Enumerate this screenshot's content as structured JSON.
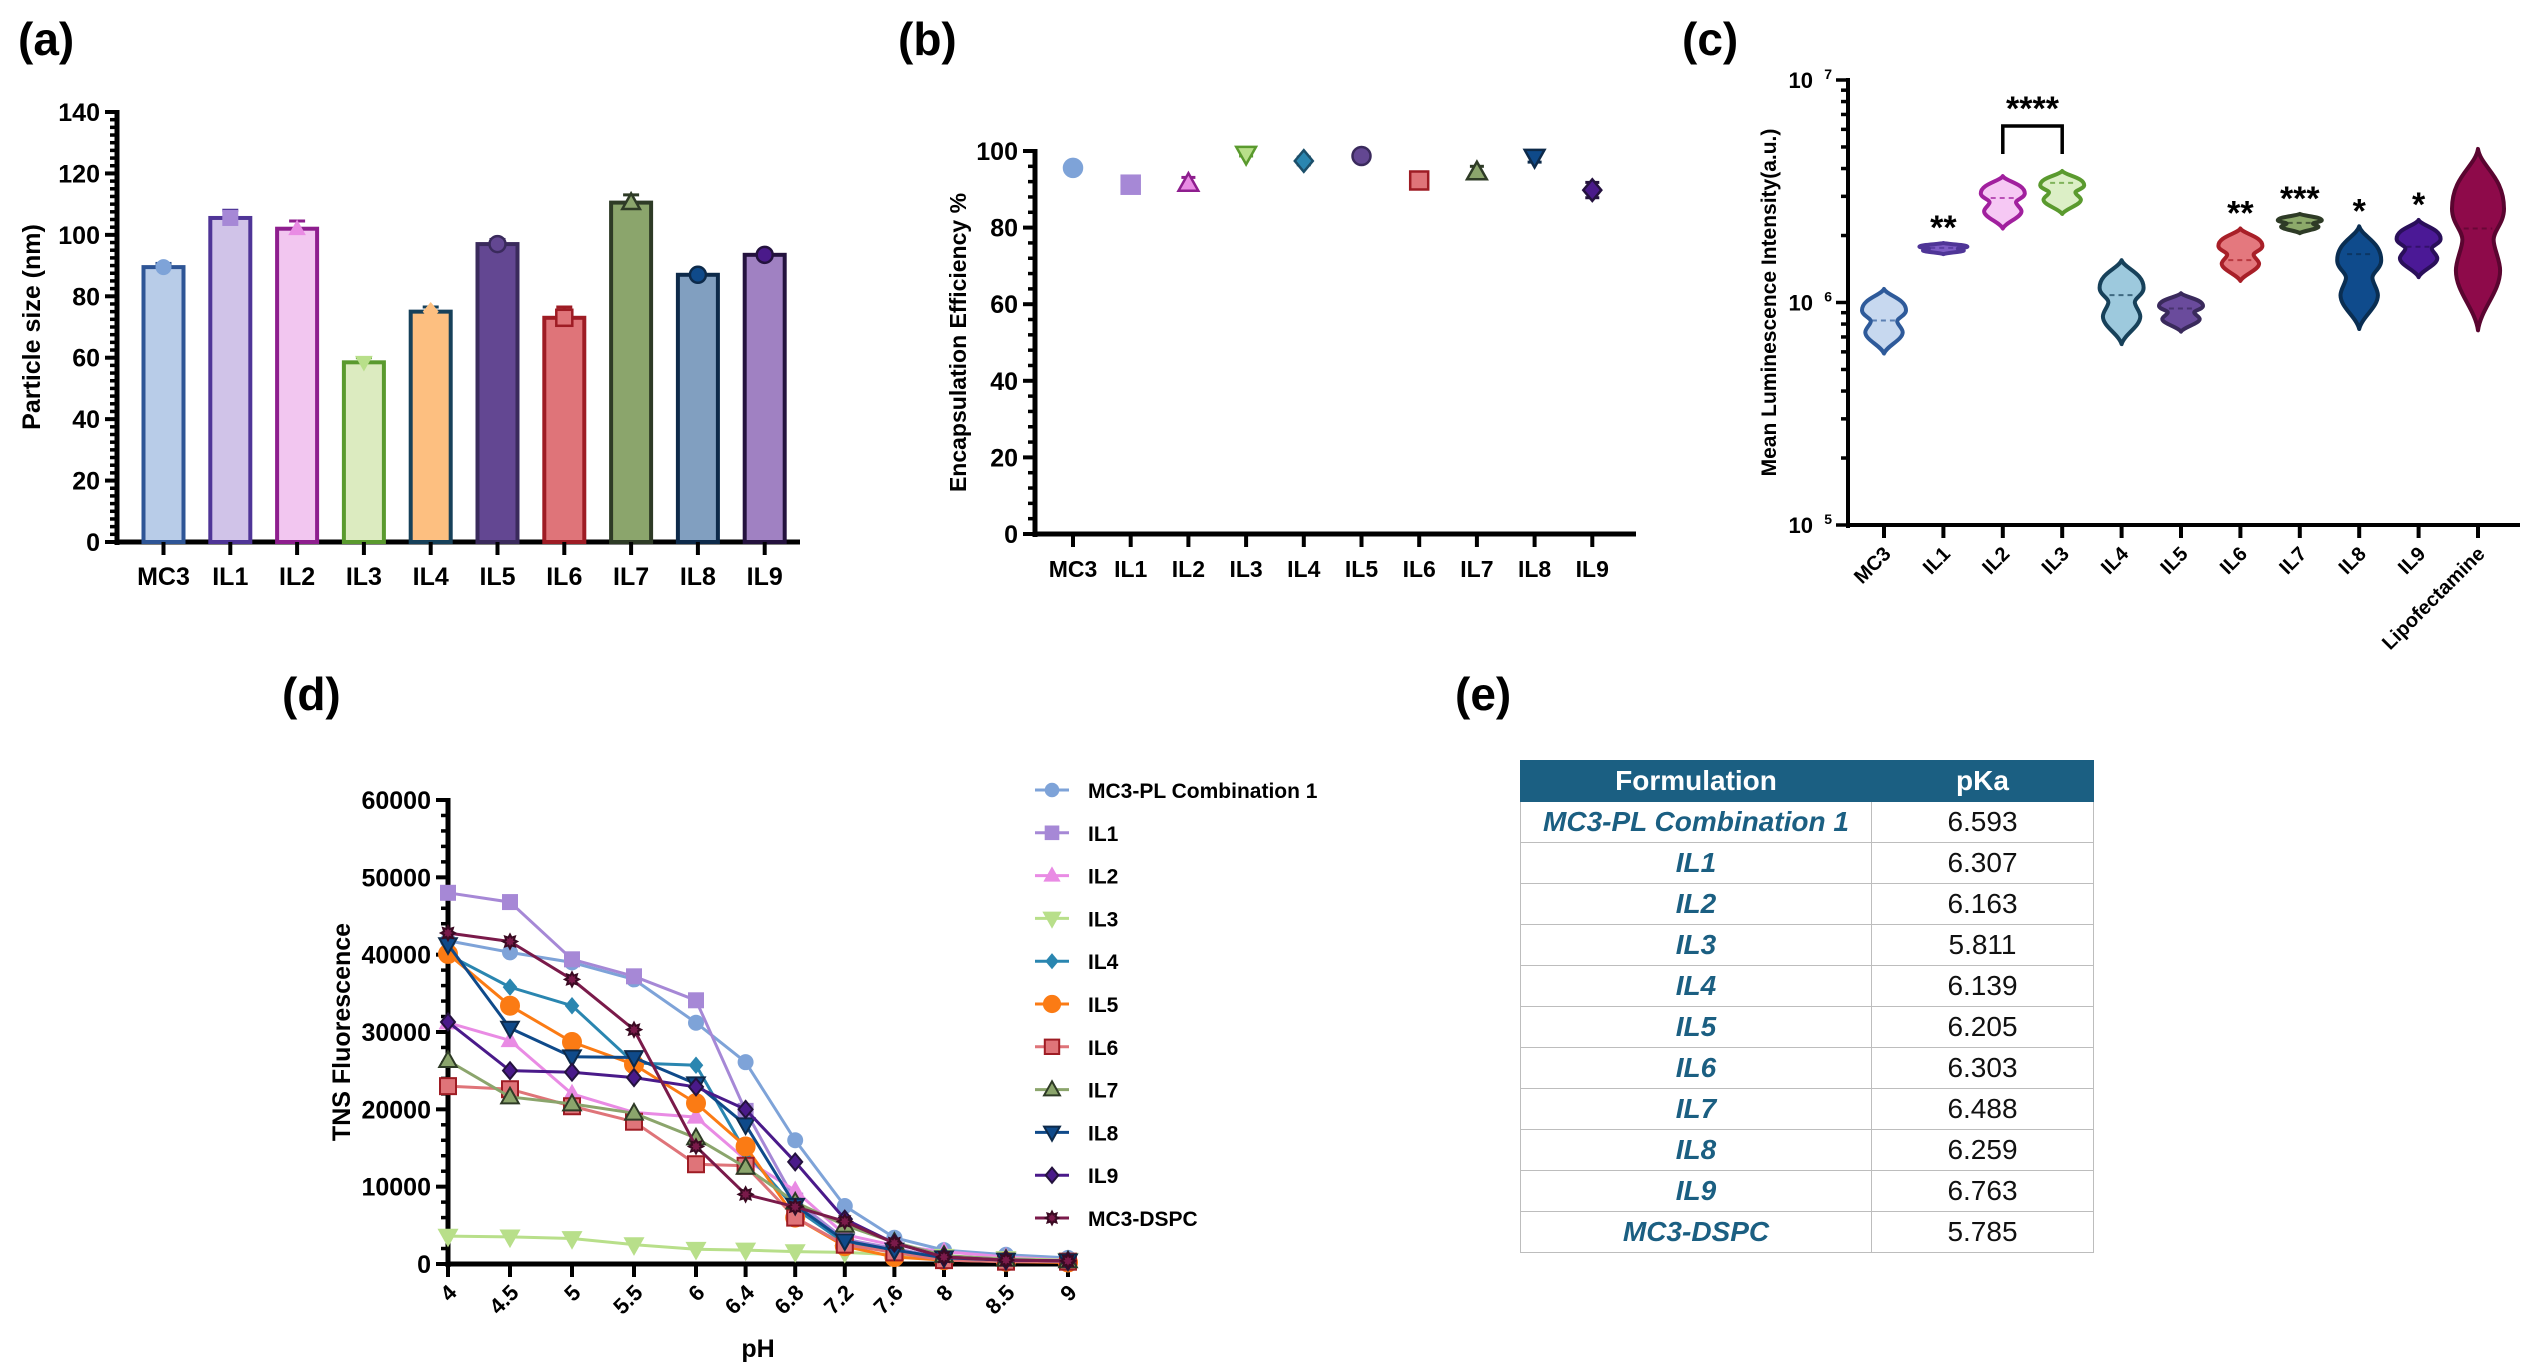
{
  "panels": {
    "a": {
      "label": "(a)"
    },
    "b": {
      "label": "(b)"
    },
    "c": {
      "label": "(c)"
    },
    "d": {
      "label": "(d)"
    },
    "e": {
      "label": "(e)"
    }
  },
  "chart_data": [
    {
      "id": "a",
      "type": "bar",
      "title": "",
      "xlabel": "",
      "ylabel": "Particle size (nm)",
      "ylim": [
        0,
        140
      ],
      "yticks": [
        0,
        20,
        40,
        60,
        80,
        100,
        120,
        140
      ],
      "categories": [
        "MC3",
        "IL1",
        "IL2",
        "IL3",
        "IL4",
        "IL5",
        "IL6",
        "IL7",
        "IL8",
        "IL9"
      ],
      "values": [
        89.5,
        105.5,
        102,
        58.5,
        75,
        97,
        73,
        110.5,
        87,
        93.5
      ],
      "errors": [
        1.2,
        2.5,
        2.5,
        1.5,
        1.5,
        1.5,
        3.5,
        2.5,
        1.0,
        1.0
      ],
      "markers": [
        "circle",
        "square",
        "triangle-up",
        "triangle-down",
        "diamond",
        "circle",
        "square",
        "triangle-up",
        "circle",
        "circle"
      ],
      "fill_colors": [
        "#b8cce8",
        "#d0c3e8",
        "#f2c6f0",
        "#dcebc0",
        "#fdbf80",
        "#634792",
        "#df7479",
        "#8ba56c",
        "#819fc0",
        "#a081c2"
      ],
      "edge_colors": [
        "#2e5596",
        "#4f3597",
        "#8e1e8e",
        "#5a9a2e",
        "#17415a",
        "#3a2a5c",
        "#9e1c24",
        "#2e3b26",
        "#0d2a4a",
        "#24123e"
      ],
      "marker_colors": [
        "#7ea3d8",
        "#a688d6",
        "#e98be4",
        "#b8df8a",
        "#fdbf80",
        "#634792",
        "#df7479",
        "#8ba56c",
        "#0f4a8a",
        "#4a1a8a"
      ]
    },
    {
      "id": "b",
      "type": "scatter",
      "title": "",
      "xlabel": "",
      "ylabel": "Encapsulation Efficiency %",
      "ylim": [
        0,
        100
      ],
      "yticks": [
        0,
        20,
        40,
        60,
        80,
        100
      ],
      "categories": [
        "MC3",
        "IL1",
        "IL2",
        "IL3",
        "IL4",
        "IL5",
        "IL6",
        "IL7",
        "IL8",
        "IL9"
      ],
      "values": [
        95.6,
        91.2,
        91.5,
        99.2,
        97.4,
        98.7,
        92.3,
        94.5,
        98.4,
        89.8
      ],
      "errors": [
        1.0,
        0.3,
        1.6,
        0.5,
        1.0,
        0.3,
        0.3,
        1.5,
        1.3,
        2.0
      ],
      "markers": [
        "circle",
        "square",
        "triangle-up",
        "triangle-down",
        "diamond",
        "circle",
        "square",
        "triangle-up",
        "triangle-down",
        "diamond"
      ],
      "fill_colors": [
        "#7ea3d8",
        "#a688d6",
        "#e98be4",
        "#b8df8a",
        "#2a86b0",
        "#634792",
        "#df7479",
        "#8ba56c",
        "#0f4a8a",
        "#4a1a8a"
      ],
      "edge_colors": [
        "#7ea3d8",
        "#a688d6",
        "#8e1e8e",
        "#5a9a2e",
        "#1b4f6a",
        "#3a2a5c",
        "#9e1c24",
        "#2e3b26",
        "#0d2a4a",
        "#24123e"
      ]
    },
    {
      "id": "c",
      "type": "violin",
      "title": "",
      "xlabel": "",
      "ylabel": "Mean Luminescence Intensity(a.u.)",
      "yscale": "log",
      "ylim": [
        100000,
        10000000
      ],
      "ytick_labels": [
        {
          "base": "10",
          "exp": "5",
          "value": 100000
        },
        {
          "base": "10",
          "exp": "6",
          "value": 1000000
        },
        {
          "base": "10",
          "exp": "7",
          "value": 10000000
        }
      ],
      "categories": [
        "MC3",
        "IL1",
        "IL2",
        "IL3",
        "IL4",
        "IL5",
        "IL6",
        "IL7",
        "IL8",
        "IL9",
        "Lipofectamine"
      ],
      "ranges": [
        [
          590000,
          1150000
        ],
        [
          1650000,
          1850000
        ],
        [
          2150000,
          3700000
        ],
        [
          2500000,
          3900000
        ],
        [
          650000,
          1550000
        ],
        [
          740000,
          1100000
        ],
        [
          1250000,
          2150000
        ],
        [
          2050000,
          2500000
        ],
        [
          760000,
          2200000
        ],
        [
          1300000,
          2350000
        ],
        [
          750000,
          4900000
        ]
      ],
      "medians": [
        830000,
        1760000,
        2950000,
        3450000,
        1080000,
        940000,
        1550000,
        2280000,
        1650000,
        1780000,
        2150000
      ],
      "significance": [
        "",
        "**",
        "",
        "",
        "",
        "",
        "**",
        "***",
        "*",
        "*",
        ""
      ],
      "bracket": {
        "from": "IL2",
        "to": "IL3",
        "label": "****"
      },
      "fill_colors": [
        "#c7d8ef",
        "#7d5cc4",
        "#f6c8f4",
        "#dcefc6",
        "#9dc9dd",
        "#6a4b9c",
        "#e4787e",
        "#8ca96a",
        "#0f4b8c",
        "#4b1996",
        "#8e0a4a"
      ],
      "edge_colors": [
        "#2e5a9a",
        "#4f3597",
        "#a1209e",
        "#5a9a2e",
        "#17415a",
        "#3a2a5c",
        "#a81f28",
        "#2e3b26",
        "#0a2e52",
        "#2a0f5a",
        "#5a0530"
      ]
    },
    {
      "id": "d",
      "type": "line",
      "title": "",
      "xlabel": "pH",
      "ylabel": "TNS Fluorescence",
      "ylim": [
        0,
        60000
      ],
      "yticks": [
        0,
        10000,
        20000,
        30000,
        40000,
        50000,
        60000
      ],
      "xlim": [
        4,
        9
      ],
      "x": [
        4,
        4.5,
        5,
        5.5,
        6,
        6.4,
        6.8,
        7.2,
        7.6,
        8,
        8.5,
        9
      ],
      "x_tick_labels": [
        "4",
        "4.5",
        "5",
        "5.5",
        "6",
        "6.4",
        "6.8",
        "7.2",
        "7.6",
        "8",
        "8.5",
        "9"
      ],
      "legend_position": "right",
      "series": [
        {
          "name": "MC3-PL Combination 1",
          "marker": "circle",
          "color": "#7ea3d8",
          "edge": "#7ea3d8",
          "values": [
            41800,
            40300,
            39000,
            36800,
            31200,
            26100,
            16000,
            7500,
            3400,
            1800,
            1200,
            800
          ]
        },
        {
          "name": "IL1",
          "marker": "square",
          "color": "#a688d6",
          "edge": "#a688d6",
          "values": [
            48000,
            46800,
            39400,
            37200,
            34100,
            19800,
            8200,
            3200,
            2000,
            800,
            600,
            400
          ]
        },
        {
          "name": "IL2",
          "marker": "triangle-up",
          "color": "#e98be4",
          "edge": "#e98be4",
          "values": [
            31200,
            28900,
            22000,
            19600,
            19000,
            13500,
            9500,
            3800,
            2400,
            1600,
            900,
            500
          ]
        },
        {
          "name": "IL3",
          "marker": "triangle-down",
          "color": "#b8df8a",
          "edge": "#b8df8a",
          "values": [
            3600,
            3500,
            3300,
            2500,
            1900,
            1800,
            1600,
            1500,
            1200,
            1000,
            700,
            500
          ]
        },
        {
          "name": "IL4",
          "marker": "diamond-small",
          "color": "#2a86b0",
          "edge": "#2a86b0",
          "values": [
            40000,
            35800,
            33400,
            26000,
            25700,
            14500,
            7200,
            2700,
            1800,
            800,
            500,
            400
          ]
        },
        {
          "name": "IL5",
          "marker": "circle-large",
          "color": "#fb7b14",
          "edge": "#fb7b14",
          "values": [
            40100,
            33400,
            28700,
            25800,
            20800,
            15200,
            6000,
            2300,
            900,
            500,
            300,
            200
          ]
        },
        {
          "name": "IL6",
          "marker": "square-open",
          "color": "#df7479",
          "edge": "#9e1c24",
          "values": [
            23000,
            22600,
            20400,
            18400,
            12900,
            12700,
            6000,
            2500,
            1500,
            500,
            300,
            300
          ]
        },
        {
          "name": "IL7",
          "marker": "triangle-up-open",
          "color": "#8ba56c",
          "edge": "#2e3b26",
          "values": [
            26300,
            21600,
            20700,
            19500,
            16300,
            12500,
            8000,
            5000,
            2800,
            1100,
            600,
            400
          ]
        },
        {
          "name": "IL8",
          "marker": "triangle-down",
          "color": "#0f4a8a",
          "edge": "#0d2a4a",
          "values": [
            41300,
            30500,
            26800,
            26700,
            23300,
            18000,
            7600,
            3000,
            1800,
            800,
            500,
            400
          ]
        },
        {
          "name": "IL9",
          "marker": "diamond",
          "color": "#4a1a8a",
          "edge": "#24123e",
          "values": [
            31300,
            25000,
            24800,
            24100,
            22900,
            20000,
            13200,
            5800,
            2700,
            900,
            500,
            400
          ]
        },
        {
          "name": "MC3-DSPC",
          "marker": "star",
          "color": "#7a1a4a",
          "edge": "#3a0a22",
          "values": [
            42800,
            41700,
            36800,
            30300,
            15200,
            9000,
            7400,
            5500,
            2700,
            900,
            500,
            400
          ]
        }
      ]
    },
    {
      "id": "e",
      "type": "table",
      "columns": [
        "Formulation",
        "pKa"
      ],
      "rows": [
        [
          "MC3-PL Combination 1",
          "6.593"
        ],
        [
          "IL1",
          "6.307"
        ],
        [
          "IL2",
          "6.163"
        ],
        [
          "IL3",
          "5.811"
        ],
        [
          "IL4",
          "6.139"
        ],
        [
          "IL5",
          "6.205"
        ],
        [
          "IL6",
          "6.303"
        ],
        [
          "IL7",
          "6.488"
        ],
        [
          "IL8",
          "6.259"
        ],
        [
          "IL9",
          "6.763"
        ],
        [
          "MC3-DSPC",
          "5.785"
        ]
      ],
      "header_color": "#1b5f82",
      "formulation_text_color": "#1b5f82"
    }
  ]
}
